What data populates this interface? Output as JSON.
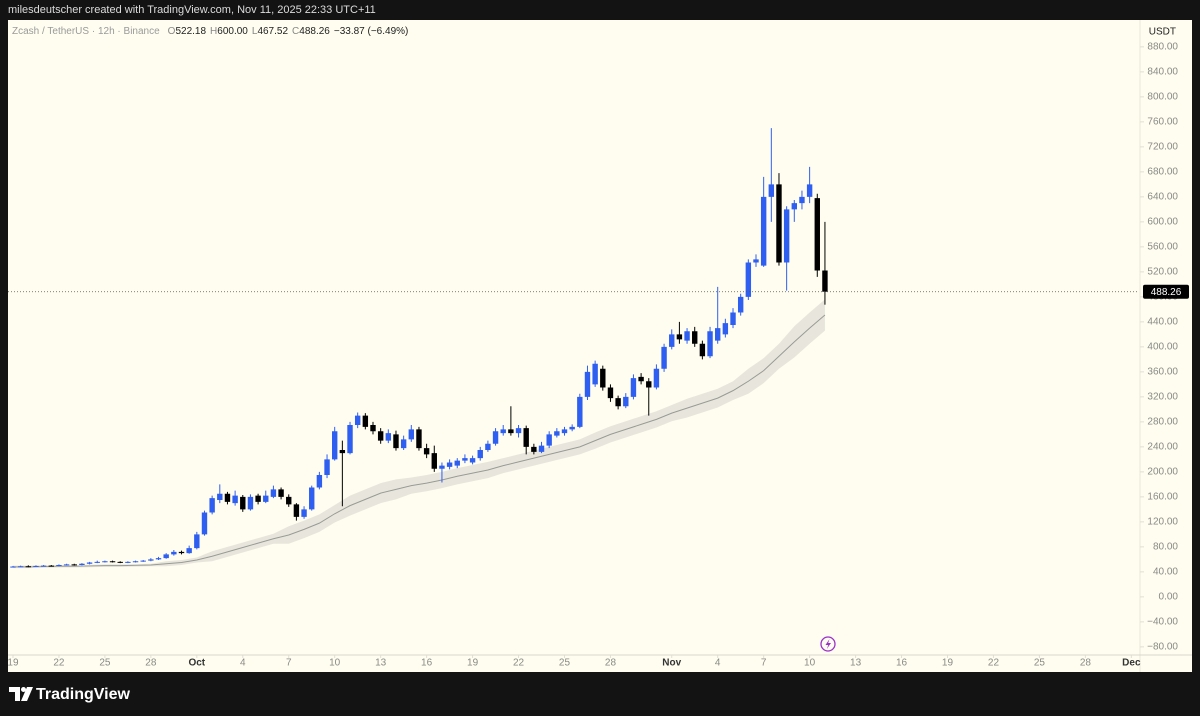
{
  "header": {
    "text": "milesdeutscher created with TradingView.com, Nov 11, 2025 22:33 UTC+11"
  },
  "footer": {
    "logo": "TradingView"
  },
  "chart_data": {
    "type": "candlestick",
    "symbol": "Zcash / TetherUS · 12h · Binance",
    "legend": [
      {
        "label": "O",
        "value": "522.18"
      },
      {
        "label": "H",
        "value": "600.00"
      },
      {
        "label": "L",
        "value": "467.52"
      },
      {
        "label": "C",
        "value": "488.26"
      }
    ],
    "change": "−33.87 (−6.49%)",
    "currency": "USDT",
    "up_color": "#2f5ff0",
    "down_color": "#000000",
    "x": [
      19,
      19.5,
      20,
      20.5,
      21,
      21.5,
      22,
      22.5,
      23,
      23.5,
      24,
      24.5,
      25,
      25.5,
      26,
      26.5,
      27,
      27.5,
      28,
      28.5,
      29,
      29.5,
      30,
      30.5,
      31,
      31.5,
      32,
      32.5,
      33,
      33.5,
      34,
      34.5,
      35,
      35.5,
      36,
      36.5,
      37,
      37.5,
      38,
      38.5,
      39,
      39.5,
      40,
      40.5,
      41,
      41.5,
      42,
      42.5,
      43,
      43.5,
      44,
      44.5,
      45,
      45.5,
      46,
      46.5,
      47,
      47.5,
      48,
      48.5,
      49,
      49.5,
      50,
      50.5,
      51,
      51.5,
      52,
      52.5,
      53,
      53.5,
      54,
      54.5,
      55,
      55.5,
      56,
      56.5,
      57,
      57.5,
      58,
      58.5,
      59,
      59.5,
      60,
      60.5,
      61,
      61.5,
      62,
      62.5,
      63,
      63.5,
      64,
      64.5,
      65,
      65.5,
      66,
      66.5,
      67,
      67.5,
      68,
      68.5,
      69,
      69.5,
      70,
      70.5,
      71,
      71.5,
      72
    ],
    "open": [
      48,
      48.5,
      49,
      48.5,
      49.5,
      50,
      49.5,
      51,
      52,
      51,
      53,
      55,
      56,
      57,
      56,
      55,
      56,
      57,
      58,
      60,
      62,
      68,
      72,
      70,
      78,
      100,
      135,
      155,
      165,
      150,
      160,
      140,
      162,
      152,
      160,
      172,
      160,
      148,
      128,
      140,
      175,
      195,
      220,
      235,
      230,
      275,
      290,
      275,
      265,
      250,
      260,
      238,
      252,
      268,
      238,
      230,
      205,
      208,
      210,
      218,
      215,
      222,
      235,
      245,
      262,
      268,
      262,
      270,
      240,
      232,
      242,
      258,
      262,
      268,
      272,
      320,
      340,
      365,
      335,
      318,
      305,
      320,
      352,
      345,
      335,
      365,
      400,
      420,
      410,
      425,
      405,
      385,
      410,
      420,
      435,
      455,
      480,
      535,
      530,
      640,
      660,
      535,
      620,
      630,
      640,
      638,
      522.18
    ],
    "high": [
      49.5,
      50,
      50.5,
      50.5,
      51,
      51,
      52,
      53,
      53,
      54,
      56,
      58,
      58,
      58,
      57,
      57,
      58,
      59,
      62,
      64,
      70,
      75,
      74,
      82,
      104,
      138,
      162,
      180,
      168,
      170,
      163,
      164,
      165,
      170,
      178,
      175,
      164,
      150,
      145,
      178,
      200,
      228,
      272,
      250,
      280,
      295,
      294,
      280,
      270,
      268,
      266,
      258,
      275,
      272,
      245,
      242,
      215,
      220,
      222,
      228,
      226,
      240,
      250,
      270,
      275,
      305,
      275,
      274,
      245,
      248,
      265,
      270,
      272,
      276,
      325,
      370,
      378,
      370,
      340,
      322,
      326,
      356,
      358,
      350,
      372,
      405,
      428,
      440,
      430,
      432,
      410,
      432,
      496,
      445,
      462,
      485,
      540,
      548,
      672,
      750,
      678,
      625,
      635,
      650,
      688,
      645,
      600
    ],
    "low": [
      47,
      48,
      47.5,
      48,
      49,
      48.5,
      49,
      50.5,
      50,
      50.5,
      52,
      54,
      55,
      55,
      54,
      54,
      55,
      56,
      57,
      59,
      61,
      66,
      68,
      69,
      76,
      98,
      132,
      150,
      148,
      146,
      136,
      138,
      148,
      150,
      158,
      156,
      144,
      122,
      125,
      138,
      172,
      190,
      218,
      145,
      228,
      270,
      268,
      260,
      245,
      246,
      234,
      235,
      248,
      234,
      222,
      200,
      183,
      204,
      206,
      214,
      212,
      218,
      232,
      242,
      258,
      258,
      255,
      228,
      228,
      230,
      238,
      255,
      258,
      265,
      270,
      315,
      336,
      330,
      312,
      300,
      302,
      316,
      340,
      290,
      332,
      360,
      396,
      405,
      405,
      400,
      380,
      382,
      405,
      415,
      430,
      450,
      475,
      528,
      528,
      600,
      530,
      490,
      600,
      620,
      630,
      512,
      467.52
    ],
    "close": [
      48.5,
      49,
      48.5,
      49.5,
      50,
      49.5,
      51,
      52,
      51,
      53,
      55,
      56,
      57,
      56,
      55,
      56,
      57,
      58,
      60,
      62,
      68,
      72,
      70,
      78,
      100,
      135,
      158,
      165,
      152,
      162,
      140,
      160,
      152,
      162,
      172,
      160,
      148,
      128,
      140,
      175,
      195,
      220,
      265,
      230,
      275,
      290,
      272,
      265,
      250,
      262,
      238,
      252,
      268,
      238,
      228,
      205,
      210,
      215,
      218,
      222,
      222,
      235,
      245,
      265,
      268,
      262,
      270,
      240,
      232,
      242,
      260,
      265,
      268,
      272,
      320,
      360,
      373,
      335,
      318,
      305,
      320,
      350,
      345,
      335,
      365,
      400,
      420,
      412,
      425,
      405,
      385,
      425,
      430,
      438,
      455,
      480,
      535,
      540,
      640,
      660,
      535,
      620,
      630,
      640,
      660,
      522.18,
      488.26
    ],
    "band": {
      "line_color": "#9a9a96",
      "fill_color": "#e8e6dc",
      "x": [
        19,
        20,
        21,
        22,
        23,
        24,
        25,
        26,
        27,
        28,
        29,
        30,
        31,
        32,
        33,
        34,
        35,
        36,
        37,
        38,
        39,
        40,
        41,
        42,
        43,
        44,
        45,
        46,
        47,
        48,
        49,
        50,
        51,
        52,
        53,
        54,
        55,
        56,
        57,
        58,
        59,
        60,
        61,
        62,
        63,
        64,
        65,
        66,
        67,
        68,
        69,
        70,
        71,
        72
      ],
      "mid": [
        48,
        48,
        48.5,
        49,
        49,
        49.5,
        50,
        50,
        50.5,
        51,
        53,
        55,
        59,
        65,
        72,
        79,
        86,
        93,
        99,
        108,
        118,
        133,
        146,
        156,
        166,
        172,
        178,
        182,
        187,
        193,
        198,
        203,
        210,
        216,
        222,
        228,
        234,
        240,
        250,
        260,
        268,
        276,
        284,
        294,
        302,
        310,
        318,
        330,
        345,
        362,
        385,
        408,
        430,
        451
      ],
      "upper": [
        50,
        50,
        50.5,
        51,
        51,
        51.5,
        52,
        52,
        52.5,
        53,
        57,
        59,
        63,
        73,
        80,
        87,
        94,
        101,
        113,
        122,
        132,
        147,
        162,
        172,
        182,
        188,
        191,
        195,
        200,
        206,
        211,
        216,
        222,
        228,
        234,
        240,
        246,
        252,
        263,
        273,
        281,
        289,
        297,
        307,
        317,
        325,
        333,
        345,
        365,
        382,
        405,
        433,
        455,
        476
      ],
      "lower": [
        46,
        46,
        46.5,
        47,
        47,
        47.5,
        48,
        48,
        48.5,
        49,
        49,
        51,
        55,
        57,
        64,
        71,
        78,
        85,
        85,
        94,
        104,
        119,
        130,
        140,
        150,
        156,
        165,
        169,
        174,
        180,
        185,
        190,
        198,
        204,
        210,
        216,
        222,
        228,
        237,
        247,
        255,
        263,
        271,
        281,
        287,
        295,
        303,
        315,
        325,
        342,
        365,
        383,
        405,
        426
      ]
    },
    "last_price": 488.26,
    "xlim": [
      18.675,
      92.5
    ],
    "ylim": [
      -93,
      923
    ],
    "grid": false,
    "xticks": [
      19,
      22,
      25,
      28,
      {
        "value": 31,
        "label": "Oct"
      },
      {
        "value": 34,
        "label": "4"
      },
      {
        "value": 37,
        "label": "7"
      },
      {
        "value": 40,
        "label": "10"
      },
      {
        "value": 43,
        "label": "13"
      },
      {
        "value": 46,
        "label": "16"
      },
      {
        "value": 49,
        "label": "19"
      },
      {
        "value": 52,
        "label": "22"
      },
      {
        "value": 55,
        "label": "25"
      },
      {
        "value": 58,
        "label": "28"
      },
      {
        "value": 62,
        "label": "Nov"
      },
      {
        "value": 65,
        "label": "4"
      },
      {
        "value": 68,
        "label": "7"
      },
      {
        "value": 71,
        "label": "10"
      },
      {
        "value": 74,
        "label": "13"
      },
      {
        "value": 77,
        "label": "16"
      },
      {
        "value": 80,
        "label": "19"
      },
      {
        "value": 83,
        "label": "22"
      },
      {
        "value": 86,
        "label": "25"
      },
      {
        "value": 89,
        "label": "28"
      },
      {
        "value": 92,
        "label": "Dec"
      }
    ],
    "yticks": [
      {
        "value": 880,
        "label": "880.00"
      },
      {
        "value": 840,
        "label": "840.00"
      },
      {
        "value": 800,
        "label": "800.00"
      },
      {
        "value": 760,
        "label": "760.00"
      },
      {
        "value": 720,
        "label": "720.00"
      },
      {
        "value": 680,
        "label": "680.00"
      },
      {
        "value": 640,
        "label": "640.00"
      },
      {
        "value": 600,
        "label": "600.00"
      },
      {
        "value": 560,
        "label": "560.00"
      },
      {
        "value": 520,
        "label": "520.00"
      },
      {
        "value": 480,
        "label": "480.00"
      },
      {
        "value": 440,
        "label": "440.00"
      },
      {
        "value": 400,
        "label": "400.00"
      },
      {
        "value": 360,
        "label": "360.00"
      },
      {
        "value": 320,
        "label": "320.00"
      },
      {
        "value": 280,
        "label": "280.00"
      },
      {
        "value": 240,
        "label": "240.00"
      },
      {
        "value": 200,
        "label": "200.00"
      },
      {
        "value": 160,
        "label": "160.00"
      },
      {
        "value": 120,
        "label": "120.00"
      },
      {
        "value": 80,
        "label": "80.00"
      },
      {
        "value": 40,
        "label": "40.00"
      },
      {
        "value": 0,
        "label": "0.00"
      },
      {
        "value": -40,
        "label": "−40.00"
      },
      {
        "value": -80,
        "label": "−80.00"
      }
    ]
  }
}
